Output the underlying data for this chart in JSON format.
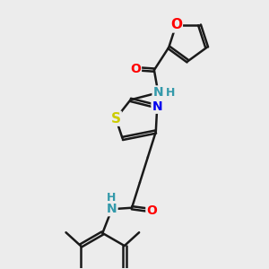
{
  "bg_color": "#ececec",
  "bond_color": "#1a1a1a",
  "bond_width": 1.8,
  "dbo": 0.06,
  "atom_colors": {
    "O": "#ff0000",
    "N": "#3399aa",
    "N2": "#0000ee",
    "S": "#cccc00",
    "C": "#1a1a1a"
  },
  "font_size": 10,
  "fig_size": [
    3.0,
    3.0
  ],
  "dpi": 100,
  "xlim": [
    0,
    10
  ],
  "ylim": [
    0,
    10
  ]
}
